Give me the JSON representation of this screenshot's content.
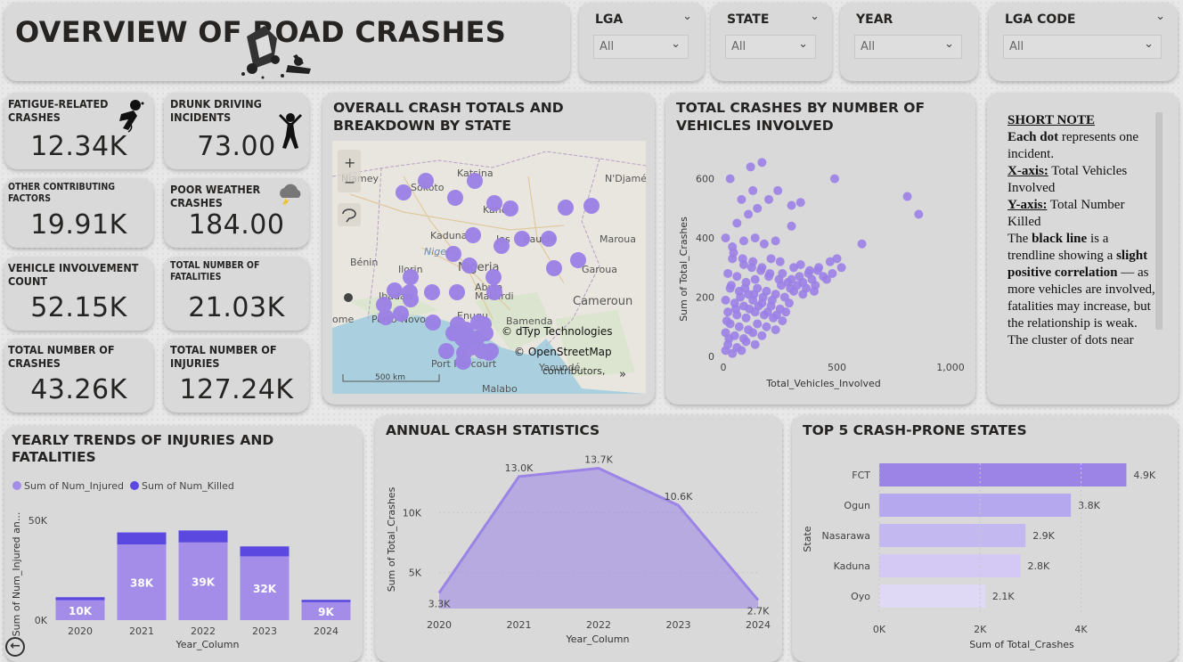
{
  "header": {
    "title": "OVERVIEW OF ROAD CRASHES"
  },
  "slicers": [
    {
      "label": "LGA",
      "value": "All"
    },
    {
      "label": "STATE",
      "value": "All"
    },
    {
      "label": "YEAR",
      "value": "All"
    },
    {
      "label": "LGA CODE",
      "value": "All"
    }
  ],
  "kpis": {
    "fatigue": {
      "label": "FATIGUE-RELATED CRASHES",
      "value": "12.34K"
    },
    "drunk": {
      "label": "DRUNK DRIVING INCIDENTS",
      "value": "73.00"
    },
    "other": {
      "label": "OTHER CONTRIBUTING FACTORS",
      "value": "19.91K"
    },
    "weather": {
      "label": "POOR WEATHER CRASHES",
      "value": "184.00"
    },
    "vehicle": {
      "label": "VEHICLE INVOLVEMENT COUNT",
      "value": "52.15K"
    },
    "fatalities": {
      "label": "TOTAL NUMBER OF FATALITIES",
      "value": "21.03K"
    },
    "crashes": {
      "label": "TOTAL NUMBER OF CRASHES",
      "value": "43.26K"
    },
    "injuries": {
      "label": "TOTAL NUMBER OF INJURIES",
      "value": "127.24K"
    }
  },
  "map": {
    "title": "OVERALL CRASH TOTALS AND BREAKDOWN BY STATE",
    "attribution_1": "© dTyp Technologies",
    "attribution_2": "© OpenStreetMap",
    "attribution_3": "contributors,",
    "scale": "500 km",
    "places": [
      "Niamey",
      "Sokoto",
      "Katsina",
      "Kano",
      "N'Djamé",
      "Kaduna",
      "Niger",
      "Jos",
      "Bauchi",
      "Maroua",
      "Bénin",
      "Ilorin",
      "Nigeria",
      "Abuja",
      "Garoua",
      "Ibadan",
      "Makurdi",
      "Cameroun",
      "ome",
      "Porto-Novo",
      "Enugu",
      "Bamenda",
      "Port Harcourt",
      "Yaoundé",
      "Malabo"
    ],
    "zoom_in": "+",
    "zoom_out": "−",
    "dot_color": "#9b7fe6"
  },
  "scatter": {
    "title": "TOTAL CRASHES BY NUMBER OF VEHICLES INVOLVED",
    "color": "#9b7fe6"
  },
  "note": {
    "heading": "SHORT NOTE",
    "lines": {
      "l1a": "Each dot",
      "l1b": " represents one incident.",
      "l2a": "X-axis:",
      "l2b": " Total Vehicles Involved",
      "l3a": "Y-axis:",
      "l3b": " Total Number Killed",
      "l4a": "The ",
      "l4b": "black line",
      "l4c": " is a trendline showing a ",
      "l4d": "slight positive correlation",
      "l4e": " — as more vehicles are involved, fatalities may increase, but the relationship is weak.",
      "l5": "The cluster of dots near"
    }
  },
  "yearly": {
    "title": "YEARLY TRENDS OF INJURIES AND FATALITIES"
  },
  "annual": {
    "title": "ANNUAL CRASH STATISTICS"
  },
  "top5": {
    "title": "TOP 5 CRASH-PRONE STATES"
  },
  "colors": {
    "injured": "#a48de8",
    "killed": "#5b48e0",
    "area": "#9b84e6"
  },
  "chart_data": [
    {
      "type": "scatter",
      "xlabel": "Total_Vehicles_Involved",
      "ylabel": "Sum of Total_Crashes",
      "xlim": [
        0,
        1000
      ],
      "ylim": [
        0,
        650
      ],
      "xticks": [
        "0",
        "500",
        "1,000"
      ],
      "yticks": [
        "0",
        "200",
        "400",
        "600"
      ],
      "points": [
        [
          30,
          600
        ],
        [
          120,
          640
        ],
        [
          170,
          655
        ],
        [
          80,
          530
        ],
        [
          130,
          560
        ],
        [
          200,
          530
        ],
        [
          240,
          560
        ],
        [
          490,
          600
        ],
        [
          810,
          540
        ],
        [
          860,
          480
        ],
        [
          60,
          450
        ],
        [
          110,
          480
        ],
        [
          150,
          500
        ],
        [
          300,
          510
        ],
        [
          340,
          520
        ],
        [
          10,
          400
        ],
        [
          40,
          370
        ],
        [
          90,
          390
        ],
        [
          140,
          400
        ],
        [
          180,
          380
        ],
        [
          230,
          390
        ],
        [
          300,
          440
        ],
        [
          610,
          380
        ],
        [
          40,
          330
        ],
        [
          90,
          310
        ],
        [
          130,
          320
        ],
        [
          170,
          300
        ],
        [
          210,
          330
        ],
        [
          250,
          320
        ],
        [
          310,
          300
        ],
        [
          340,
          310
        ],
        [
          380,
          290
        ],
        [
          420,
          300
        ],
        [
          470,
          320
        ],
        [
          500,
          330
        ],
        [
          520,
          300
        ],
        [
          20,
          280
        ],
        [
          60,
          270
        ],
        [
          100,
          250
        ],
        [
          140,
          260
        ],
        [
          200,
          270
        ],
        [
          260,
          280
        ],
        [
          300,
          260
        ],
        [
          350,
          250
        ],
        [
          390,
          260
        ],
        [
          440,
          270
        ],
        [
          480,
          280
        ],
        [
          30,
          230
        ],
        [
          70,
          220
        ],
        [
          110,
          210
        ],
        [
          150,
          230
        ],
        [
          190,
          220
        ],
        [
          230,
          210
        ],
        [
          270,
          200
        ],
        [
          310,
          220
        ],
        [
          350,
          210
        ],
        [
          400,
          220
        ],
        [
          10,
          190
        ],
        [
          50,
          180
        ],
        [
          90,
          170
        ],
        [
          130,
          190
        ],
        [
          170,
          180
        ],
        [
          210,
          170
        ],
        [
          250,
          160
        ],
        [
          290,
          180
        ],
        [
          20,
          150
        ],
        [
          60,
          140
        ],
        [
          100,
          130
        ],
        [
          140,
          150
        ],
        [
          180,
          140
        ],
        [
          220,
          130
        ],
        [
          260,
          120
        ],
        [
          30,
          110
        ],
        [
          70,
          100
        ],
        [
          110,
          90
        ],
        [
          150,
          110
        ],
        [
          190,
          100
        ],
        [
          230,
          90
        ],
        [
          10,
          80
        ],
        [
          50,
          70
        ],
        [
          90,
          60
        ],
        [
          130,
          80
        ],
        [
          170,
          70
        ],
        [
          20,
          40
        ],
        [
          60,
          30
        ],
        [
          100,
          50
        ],
        [
          140,
          40
        ],
        [
          10,
          20
        ],
        [
          40,
          10
        ],
        [
          80,
          20
        ],
        [
          35,
          240
        ],
        [
          75,
          200
        ],
        [
          115,
          160
        ],
        [
          155,
          170
        ],
        [
          195,
          150
        ],
        [
          235,
          140
        ],
        [
          275,
          150
        ],
        [
          15,
          120
        ],
        [
          55,
          160
        ],
        [
          95,
          230
        ],
        [
          135,
          210
        ],
        [
          175,
          200
        ],
        [
          215,
          190
        ],
        [
          255,
          240
        ],
        [
          295,
          230
        ],
        [
          335,
          270
        ],
        [
          375,
          280
        ],
        [
          415,
          290
        ],
        [
          455,
          260
        ],
        [
          45,
          350
        ],
        [
          85,
          330
        ],
        [
          125,
          300
        ],
        [
          165,
          290
        ],
        [
          205,
          280
        ],
        [
          245,
          260
        ],
        [
          285,
          250
        ],
        [
          325,
          240
        ],
        [
          365,
          230
        ],
        [
          405,
          240
        ],
        [
          25,
          60
        ]
      ]
    },
    {
      "type": "bar",
      "stacked": true,
      "xlabel": "Year_Column",
      "ylabel": "Sum of Num_Injured an...",
      "ylim": [
        0,
        55000
      ],
      "yticks": [
        "0K",
        "50K"
      ],
      "categories": [
        "2020",
        "2021",
        "2022",
        "2023",
        "2024"
      ],
      "series": [
        {
          "name": "Sum of Num_Injured",
          "values": [
            10000,
            38000,
            39000,
            32000,
            9000
          ],
          "labels": [
            "10K",
            "38K",
            "39K",
            "32K",
            "9K"
          ]
        },
        {
          "name": "Sum of Num_Killed",
          "values": [
            1500,
            6000,
            6000,
            5000,
            1200
          ]
        }
      ]
    },
    {
      "type": "area",
      "xlabel": "Year_Column",
      "ylabel": "Sum of Total_Crashes",
      "ylim": [
        2000,
        15000
      ],
      "yticks": [
        "5K",
        "10K"
      ],
      "categories": [
        "2020",
        "2021",
        "2022",
        "2023",
        "2024"
      ],
      "values": [
        3300,
        13000,
        13700,
        10600,
        2700
      ],
      "labels": [
        "3.3K",
        "13.0K",
        "13.7K",
        "10.6K",
        "2.7K"
      ]
    },
    {
      "type": "bar",
      "orientation": "horizontal",
      "xlabel": "Sum of Total_Crashes",
      "ylabel": "State",
      "xlim": [
        0,
        5000
      ],
      "xticks": [
        "0K",
        "2K",
        "4K"
      ],
      "categories": [
        "FCT",
        "Ogun",
        "Nasarawa",
        "Kaduna",
        "Oyo"
      ],
      "values": [
        4900,
        3800,
        2900,
        2800,
        2100
      ],
      "labels": [
        "4.9K",
        "3.8K",
        "2.9K",
        "2.8K",
        "2.1K"
      ],
      "bar_colors": [
        "#9b84e6",
        "#b6a8ee",
        "#c4b8f0",
        "#d3c9f4",
        "#e0d9f6"
      ]
    }
  ]
}
